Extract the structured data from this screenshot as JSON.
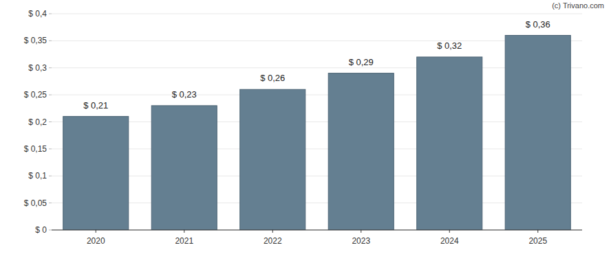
{
  "chart_data": {
    "type": "bar",
    "annotations": [
      "(c) Trivano.com"
    ],
    "categories": [
      "2020",
      "2021",
      "2022",
      "2023",
      "2024",
      "2025"
    ],
    "values": [
      0.21,
      0.23,
      0.26,
      0.29,
      0.32,
      0.36
    ],
    "value_labels": [
      "$ 0,21",
      "$ 0,23",
      "$ 0,26",
      "$ 0,29",
      "$ 0,32",
      "$ 0,36"
    ],
    "data_labels": true,
    "color": "#647f91",
    "ylim": [
      0,
      0.4
    ],
    "yticks": [
      {
        "value": 0,
        "label": "$ 0"
      },
      {
        "value": 0.05,
        "label": "$ 0,05"
      },
      {
        "value": 0.1,
        "label": "$ 0,1"
      },
      {
        "value": 0.15,
        "label": "$ 0,15"
      },
      {
        "value": 0.2,
        "label": "$ 0,2"
      },
      {
        "value": 0.25,
        "label": "$ 0,25"
      },
      {
        "value": 0.3,
        "label": "$ 0,3"
      },
      {
        "value": 0.35,
        "label": "$ 0,35"
      },
      {
        "value": 0.4,
        "label": "$ 0,4"
      }
    ],
    "grid": true
  }
}
